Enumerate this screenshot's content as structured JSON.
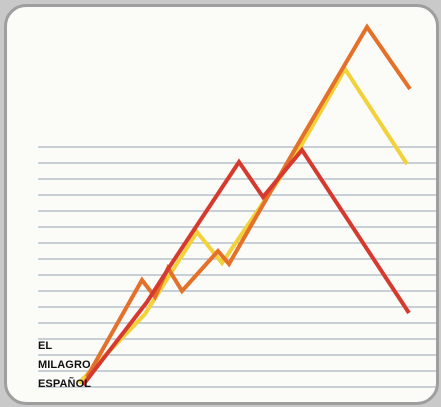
{
  "caption": {
    "line1": "EL",
    "line2": "MILAGRO",
    "line3": "ESPAÑOL"
  },
  "colors": {
    "background": "#fbfbf8",
    "frame": "#9e9e9e",
    "rules": "#a9b6c2",
    "red_line": "#d63a2f",
    "orange_line": "#e4702a",
    "yellow_line": "#f2d23a"
  }
}
